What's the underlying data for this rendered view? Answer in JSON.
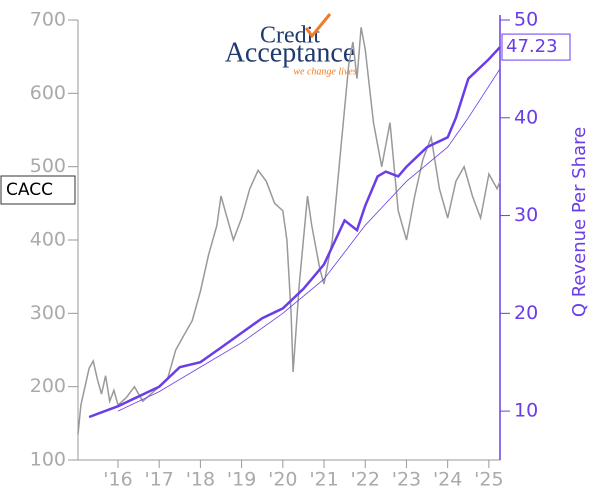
{
  "chart_data": {
    "type": "line",
    "logo": {
      "line1": "Credit",
      "line2": "Acceptance",
      "tagline": "we change lives"
    },
    "ticker": "CACC",
    "y2label": "Q Revenue Per Share",
    "last_value_label": "47.23",
    "xlim": [
      2015.03,
      2025.27
    ],
    "xticks": [
      {
        "value": 2016,
        "label": "'16"
      },
      {
        "value": 2017,
        "label": "'17"
      },
      {
        "value": 2018,
        "label": "'18"
      },
      {
        "value": 2019,
        "label": "'19"
      },
      {
        "value": 2020,
        "label": "'20"
      },
      {
        "value": 2021,
        "label": "'21"
      },
      {
        "value": 2022,
        "label": "'22"
      },
      {
        "value": 2023,
        "label": "'23"
      },
      {
        "value": 2024,
        "label": "'24"
      },
      {
        "value": 2025,
        "label": "'25"
      }
    ],
    "ylim": [
      100,
      700
    ],
    "yticks": [
      100,
      200,
      300,
      400,
      500,
      600,
      700
    ],
    "y2lim": [
      5,
      50
    ],
    "y2ticks": [
      10,
      20,
      30,
      40,
      50
    ],
    "series": [
      {
        "color": "#999999",
        "x": [
          2015.03,
          2015.1,
          2015.2,
          2015.3,
          2015.4,
          2015.5,
          2015.6,
          2015.7,
          2015.8,
          2015.9,
          2016.0,
          2016.2,
          2016.4,
          2016.6,
          2016.8,
          2017.0,
          2017.2,
          2017.4,
          2017.6,
          2017.8,
          2018.0,
          2018.2,
          2018.4,
          2018.5,
          2018.6,
          2018.8,
          2019.0,
          2019.2,
          2019.4,
          2019.6,
          2019.8,
          2020.0,
          2020.1,
          2020.2,
          2020.25,
          2020.4,
          2020.5,
          2020.6,
          2020.7,
          2020.9,
          2021.0,
          2021.2,
          2021.4,
          2021.6,
          2021.7,
          2021.8,
          2021.9,
          2022.0,
          2022.2,
          2022.4,
          2022.6,
          2022.8,
          2023.0,
          2023.2,
          2023.4,
          2023.6,
          2023.8,
          2024.0,
          2024.2,
          2024.4,
          2024.6,
          2024.8,
          2025.0,
          2025.2,
          2025.27
        ],
        "values": [
          135,
          175,
          200,
          225,
          235,
          210,
          190,
          215,
          180,
          195,
          175,
          185,
          200,
          180,
          190,
          200,
          210,
          250,
          270,
          290,
          330,
          380,
          420,
          460,
          440,
          400,
          430,
          470,
          495,
          480,
          450,
          440,
          400,
          300,
          220,
          340,
          400,
          460,
          420,
          360,
          340,
          400,
          520,
          640,
          670,
          620,
          690,
          660,
          560,
          500,
          560,
          440,
          400,
          460,
          510,
          540,
          470,
          430,
          480,
          500,
          460,
          430,
          490,
          470,
          480
        ]
      },
      {
        "color": "#6a3de8",
        "axis": "y2",
        "width": 2.5,
        "x": [
          2015.3,
          2016,
          2017,
          2017.5,
          2018,
          2018.5,
          2019,
          2019.5,
          2020,
          2020.5,
          2021,
          2021.5,
          2021.8,
          2022,
          2022.3,
          2022.5,
          2022.8,
          2023,
          2023.5,
          2024,
          2024.2,
          2024.5,
          2025,
          2025.27
        ],
        "values": [
          9.4,
          10.5,
          12.5,
          14.5,
          15,
          16.5,
          18,
          19.5,
          20.5,
          22.5,
          25,
          29.5,
          28.5,
          31,
          34,
          34.5,
          34,
          35,
          37,
          38,
          40,
          44,
          46,
          47.23
        ]
      },
      {
        "color": "#6a3de8",
        "axis": "y2",
        "width": 0.8,
        "x": [
          2016,
          2017,
          2018,
          2019,
          2020,
          2021,
          2022,
          2023,
          2024,
          2024.5,
          2025.27
        ],
        "values": [
          10,
          12,
          14.5,
          17,
          20,
          23.5,
          29,
          33.5,
          37,
          40,
          45
        ]
      }
    ]
  }
}
